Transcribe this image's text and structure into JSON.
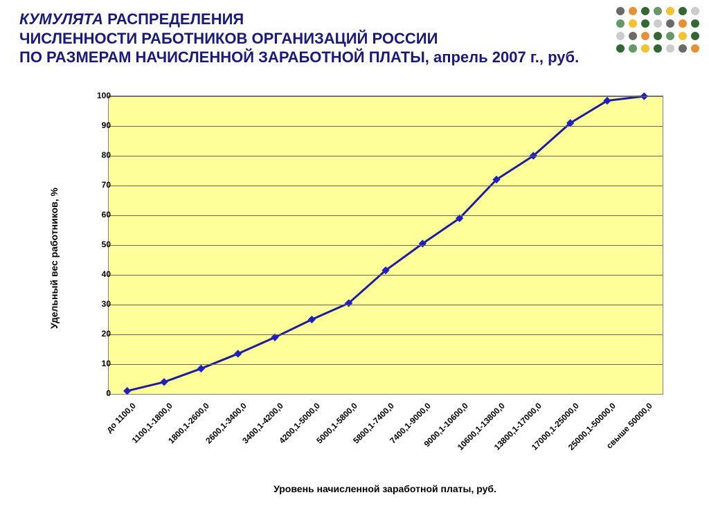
{
  "title": {
    "line1_italic_word": "КУМУЛЯТА",
    "line1_rest": " РАСПРЕДЕЛЕНИЯ",
    "line2": "ЧИСЛЕННОСТИ РАБОТНИКОВ ОРГАНИЗАЦИЙ РОССИИ",
    "line3": "ПО РАЗМЕРАМ НАЧИСЛЕННОЙ ЗАРАБОТНОЙ ПЛАТЫ, апрель 2007 г., руб.",
    "color": "#1a1a7a",
    "fontsize": 22
  },
  "chart": {
    "type": "line",
    "plot_background": "#ffff99",
    "grid_color": "#666666",
    "border_color": "#808080",
    "line_color": "#1c1c9c",
    "marker_color": "#2020c0",
    "marker_size": 8,
    "line_width": 3,
    "ylim": [
      0,
      100
    ],
    "ytick_step": 10,
    "yticks": [
      "0",
      "10",
      "20",
      "30",
      "40",
      "50",
      "60",
      "70",
      "80",
      "90",
      "100"
    ],
    "ylabel": "Удельный вес работников, %",
    "xlabel": "Уровень начисленной заработной платы, руб.",
    "label_fontsize": 14,
    "tick_fontsize": 12,
    "categories": [
      "до 1100,0",
      "1100,1-1800,0",
      "1800,1-2600,0",
      "2600,1-3400,0",
      "3400,1-4200,0",
      "4200,1-5000,0",
      "5000,1-5800,0",
      "5800,1-7400,0",
      "7400,1-9000,0",
      "9000,1-10600,0",
      "10600,1-13800,0",
      "13800,1-17000,0",
      "17000,1-25000,0",
      "25000,1-50000,0",
      "свыше 50000,0"
    ],
    "values": [
      1,
      4,
      8.5,
      13.5,
      19,
      25,
      30.5,
      41.5,
      50.5,
      59,
      72,
      80,
      91,
      98.5,
      100
    ]
  },
  "deco": {
    "colors": [
      "#6a6a6a",
      "#e69138",
      "#336633",
      "#669966",
      "#f1c232",
      "#336633",
      "#cccccc"
    ],
    "dot_radius": 6,
    "cols": 7,
    "rows": 4
  }
}
